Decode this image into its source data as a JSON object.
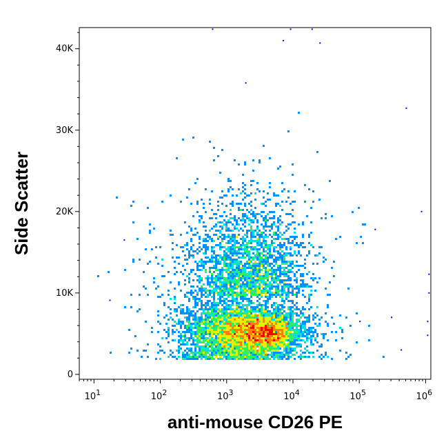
{
  "chart_data": {
    "type": "scatter",
    "subtype": "flow-cytometry-density-plot",
    "xlabel": "anti-mouse CD26 PE",
    "ylabel": "Side Scatter",
    "x_scale": "log",
    "xlim": [
      6,
      1200000
    ],
    "ylim": [
      -600,
      42600
    ],
    "x_ticks": [
      {
        "value": 10,
        "base": "10",
        "exp": "1"
      },
      {
        "value": 100,
        "base": "10",
        "exp": "2"
      },
      {
        "value": 1000,
        "base": "10",
        "exp": "3"
      },
      {
        "value": 10000,
        "base": "10",
        "exp": "4"
      },
      {
        "value": 100000,
        "base": "10",
        "exp": "5"
      },
      {
        "value": 1000000,
        "base": "10",
        "exp": "6"
      }
    ],
    "y_ticks": [
      {
        "value": 0,
        "label": "0"
      },
      {
        "value": 10000,
        "label": "10K"
      },
      {
        "value": 20000,
        "label": "20K"
      },
      {
        "value": 30000,
        "label": "30K"
      },
      {
        "value": 40000,
        "label": "40K"
      }
    ],
    "grid": false,
    "legend": "none",
    "density_colormap": [
      "#0000ff",
      "#0090ff",
      "#00e0e0",
      "#30f060",
      "#e8f000",
      "#ff8000",
      "#ff0000"
    ],
    "populations": [
      {
        "name": "main-high-density",
        "x_center": 4500,
        "y_center": 5000,
        "x_log_spread": 0.16,
        "y_spread": 800,
        "weight": 0.07
      },
      {
        "name": "main-body",
        "x_center": 3000,
        "y_center": 5200,
        "x_log_spread": 0.35,
        "y_spread": 1500,
        "weight": 0.38
      },
      {
        "name": "low-expression-shoulder",
        "x_center": 900,
        "y_center": 5200,
        "x_log_spread": 0.35,
        "y_spread": 2000,
        "weight": 0.22
      },
      {
        "name": "high-side-scatter-tail",
        "x_center": 2200,
        "y_center": 12500,
        "x_log_spread": 0.4,
        "y_spread": 5500,
        "weight": 0.23
      },
      {
        "name": "sparse-outliers",
        "x_center": 1500,
        "y_center": 9000,
        "x_log_spread": 0.75,
        "y_spread": 7000,
        "weight": 0.1
      }
    ],
    "outliers": [
      {
        "x": 17,
        "y": 9100
      },
      {
        "x": 28,
        "y": 16500
      },
      {
        "x": 9000,
        "y": 42400
      },
      {
        "x": 19000,
        "y": 42400
      },
      {
        "x": 25000,
        "y": 40700
      },
      {
        "x": 1900,
        "y": 35800
      },
      {
        "x": 500000,
        "y": 32700
      },
      {
        "x": 1100000,
        "y": 12300
      },
      {
        "x": 1100000,
        "y": 10000
      },
      {
        "x": 1050000,
        "y": 6500
      },
      {
        "x": 1050000,
        "y": 4800
      },
      {
        "x": 100000,
        "y": 6500
      },
      {
        "x": 300000,
        "y": 7000
      },
      {
        "x": 170000,
        "y": 17800
      },
      {
        "x": 850000,
        "y": 20000
      },
      {
        "x": 420000,
        "y": 3000
      },
      {
        "x": 7000,
        "y": 41000
      },
      {
        "x": 600,
        "y": 42400
      }
    ]
  }
}
